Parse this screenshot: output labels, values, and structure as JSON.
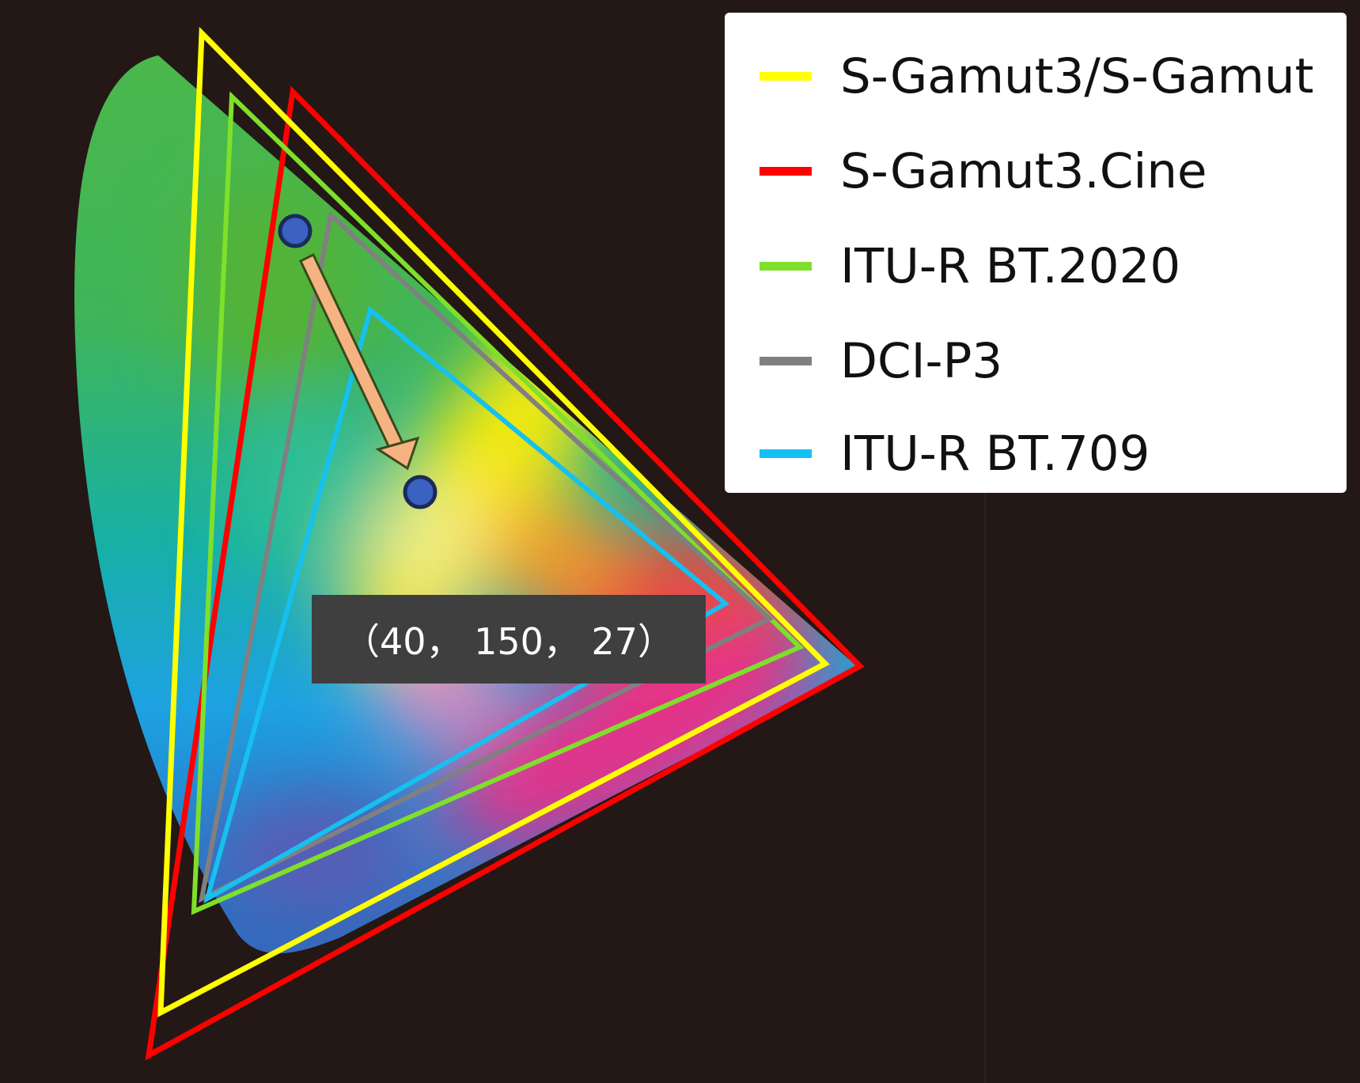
{
  "legend": {
    "items": [
      {
        "label": "S-Gamut3/S-Gamut",
        "color": "#ffff00"
      },
      {
        "label": "S-Gamut3.Cine",
        "color": "#ff0000"
      },
      {
        "label": "ITU-R BT.2020",
        "color": "#7ee02a"
      },
      {
        "label": "DCI-P3",
        "color": "#808080"
      },
      {
        "label": "ITU-R BT.709",
        "color": "#16c0f0"
      }
    ]
  },
  "annotation": {
    "coordinate_label": "（40， 150， 27）",
    "marker_color": "#3b62c0",
    "arrow_color": "#f6b382"
  }
}
